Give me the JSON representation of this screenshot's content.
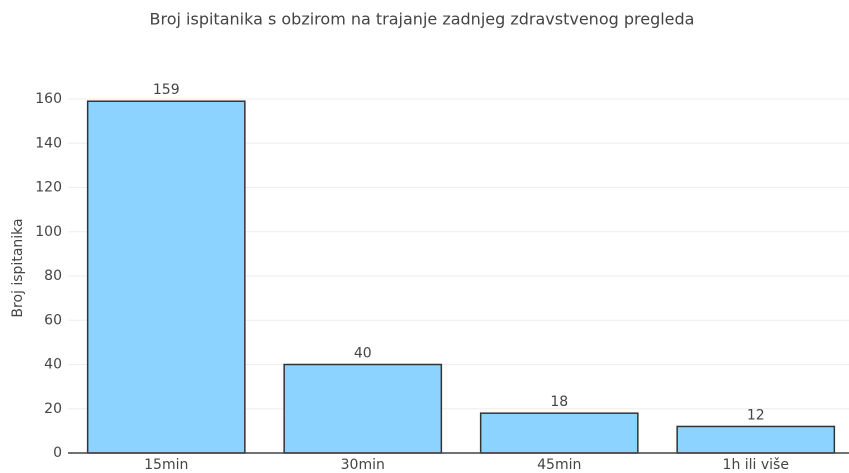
{
  "chart_data": {
    "type": "bar",
    "title": "Broj ispitanika s obzirom na trajanje zadnjeg zdravstvenog pregleda",
    "y_label": "Broj ispitanika",
    "categories": [
      "15min",
      "30min",
      "45min",
      "1h ili više"
    ],
    "values": [
      159,
      40,
      18,
      12
    ],
    "color": "#8dd3ff",
    "ylim": [
      0,
      160
    ],
    "yticks": [
      0,
      20,
      40,
      60,
      80,
      100,
      120,
      140,
      160
    ],
    "grid": true
  }
}
